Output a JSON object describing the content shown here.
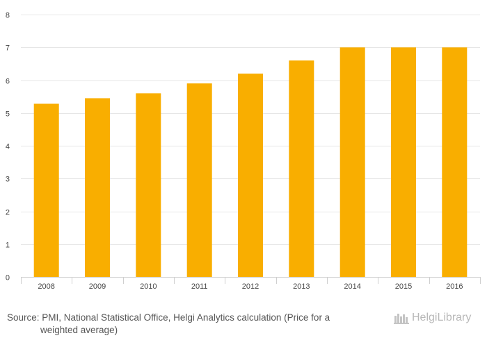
{
  "chart_data": {
    "type": "bar",
    "categories": [
      "2008",
      "2009",
      "2010",
      "2011",
      "2012",
      "2013",
      "2014",
      "2015",
      "2016"
    ],
    "values": [
      5.28,
      5.45,
      5.6,
      5.9,
      6.2,
      6.6,
      7.0,
      7.0,
      7.0
    ],
    "title": "",
    "xlabel": "",
    "ylabel": "",
    "ylim": [
      0,
      8
    ],
    "yticks": [
      "0",
      "1",
      "2",
      "3",
      "4",
      "5",
      "6",
      "7",
      "8"
    ],
    "grid": true,
    "bar_color": "#f9ae00"
  },
  "footer": {
    "source_line1": "Source: PMI, National Statistical Office, Helgi Analytics calculation (Price for a",
    "source_line2": "weighted average)",
    "logo_text": "HelgiLibrary"
  }
}
